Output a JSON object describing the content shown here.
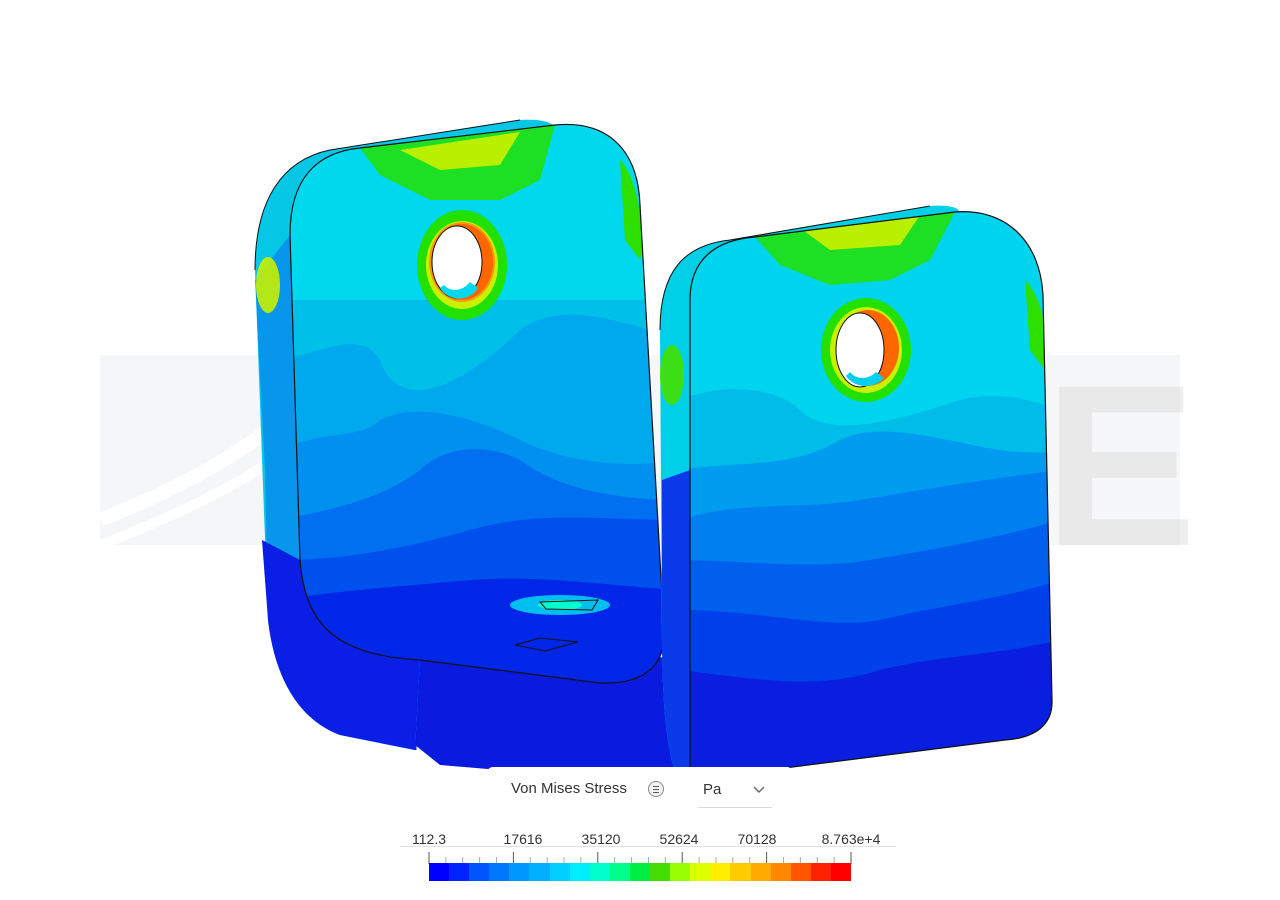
{
  "legend": {
    "title": "Von Mises Stress",
    "info_icon": "list-info-icon",
    "unit": "Pa",
    "unit_icon": "chevron-down-icon",
    "tick_labels": [
      "112.3",
      "17616",
      "35120",
      "52624",
      "70128",
      "8.763e+4"
    ],
    "colors": [
      "#0000ff",
      "#0022ff",
      "#0055ff",
      "#0077ff",
      "#0099ff",
      "#00b0ff",
      "#00cfff",
      "#00eeff",
      "#00ffcc",
      "#00ff88",
      "#00ee44",
      "#44dd00",
      "#99ff00",
      "#ddff00",
      "#ffee00",
      "#ffcc00",
      "#ffaa00",
      "#ff8800",
      "#ff5500",
      "#ff2200",
      "#ff0000"
    ]
  },
  "watermark": {
    "text": "LE"
  }
}
